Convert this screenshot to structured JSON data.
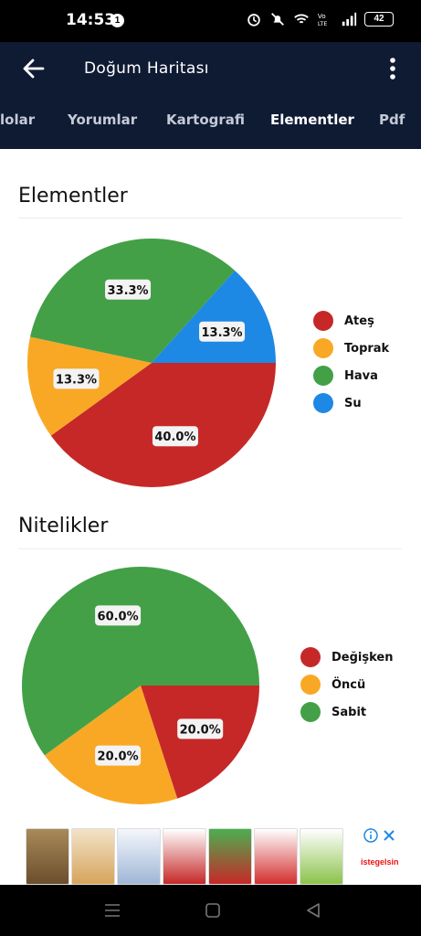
{
  "status_bar": {
    "time": "14:53",
    "notification_count": "1",
    "battery": "42"
  },
  "app_bar": {
    "title": "Doğum Haritası"
  },
  "tabs": [
    {
      "label": "lolar"
    },
    {
      "label": "Yorumlar"
    },
    {
      "label": "Kartografi"
    },
    {
      "label": "Elementler",
      "active": true
    },
    {
      "label": "Pdf"
    }
  ],
  "sections": [
    {
      "title": "Elementler"
    },
    {
      "title": "Nitelikler"
    }
  ],
  "chart_data": [
    {
      "type": "pie",
      "title": "Elementler",
      "legend_position": "right",
      "categories": [
        "Ateş",
        "Toprak",
        "Hava",
        "Su"
      ],
      "values": [
        40.0,
        13.3,
        33.3,
        13.3
      ],
      "labels": [
        "40.0%",
        "13.3%",
        "33.3%",
        "13.3%"
      ],
      "colors": [
        "#c62828",
        "#f9a825",
        "#43a047",
        "#1e88e5"
      ]
    },
    {
      "type": "pie",
      "title": "Nitelikler",
      "legend_position": "right",
      "categories": [
        "Değişken",
        "Öncü",
        "Sabit"
      ],
      "values": [
        20.0,
        20.0,
        60.0
      ],
      "labels": [
        "20.0%",
        "20.0%",
        "60.0%"
      ],
      "colors": [
        "#c62828",
        "#f9a825",
        "#43a047"
      ]
    }
  ],
  "ad": {
    "brand": "istegelsin"
  }
}
